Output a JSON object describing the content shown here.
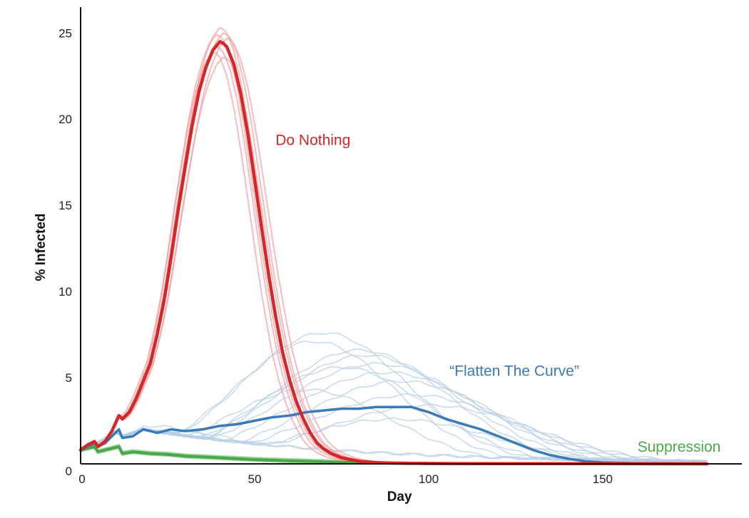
{
  "chart_data": {
    "type": "line",
    "xlabel": "Day",
    "ylabel": "% Infected",
    "xlim": [
      0,
      190
    ],
    "ylim": [
      0,
      26.5
    ],
    "xticks": [
      0,
      50,
      100,
      150
    ],
    "yticks": [
      0,
      5,
      10,
      15,
      20,
      25
    ],
    "grid": false,
    "series": [
      {
        "name": "Do Nothing",
        "color": "#d62728",
        "x": [
          0,
          2,
          4,
          5,
          7,
          9,
          11,
          12,
          14,
          16,
          18,
          20,
          22,
          24,
          26,
          28,
          30,
          32,
          34,
          36,
          38,
          40,
          41,
          42,
          44,
          46,
          48,
          50,
          52,
          54,
          56,
          58,
          60,
          62,
          64,
          66,
          68,
          70,
          72,
          75,
          80,
          85,
          90,
          100,
          120,
          150,
          180
        ],
        "y": [
          0.8,
          1.1,
          1.3,
          1.0,
          1.3,
          1.9,
          2.8,
          2.6,
          3.0,
          3.8,
          4.8,
          5.8,
          7.5,
          9.5,
          12.0,
          14.7,
          17.2,
          19.6,
          21.6,
          23.0,
          24.0,
          24.5,
          24.4,
          24.2,
          23.2,
          21.5,
          19.2,
          16.5,
          13.7,
          11.0,
          8.6,
          6.5,
          4.9,
          3.6,
          2.6,
          1.8,
          1.2,
          0.85,
          0.6,
          0.35,
          0.15,
          0.07,
          0.04,
          0.02,
          0.01,
          0.01,
          0.0
        ]
      },
      {
        "name": "“Flatten The Curve”",
        "color": "#3a7ab8",
        "x": [
          0,
          2,
          4,
          5,
          7,
          9,
          11,
          12,
          15,
          18,
          22,
          26,
          30,
          35,
          40,
          45,
          50,
          55,
          60,
          65,
          70,
          75,
          80,
          85,
          90,
          95,
          100,
          105,
          110,
          115,
          120,
          125,
          130,
          135,
          140,
          145,
          150,
          160,
          170,
          180
        ],
        "y": [
          0.8,
          1.0,
          1.2,
          1.0,
          1.2,
          1.6,
          2.0,
          1.5,
          1.6,
          2.0,
          1.8,
          2.0,
          1.9,
          2.0,
          2.2,
          2.3,
          2.5,
          2.7,
          2.8,
          3.0,
          3.1,
          3.2,
          3.2,
          3.3,
          3.3,
          3.3,
          3.0,
          2.6,
          2.3,
          2.0,
          1.6,
          1.2,
          0.8,
          0.5,
          0.3,
          0.15,
          0.08,
          0.03,
          0.01,
          0.0
        ]
      },
      {
        "name": "Suppression",
        "color": "#4aa84a",
        "x": [
          0,
          2,
          4,
          5,
          7,
          9,
          11,
          12,
          15,
          20,
          25,
          30,
          35,
          40,
          45,
          50,
          60,
          70,
          80,
          90,
          100,
          120,
          150,
          180
        ],
        "y": [
          0.8,
          0.9,
          1.0,
          0.7,
          0.8,
          0.9,
          1.0,
          0.6,
          0.7,
          0.6,
          0.55,
          0.45,
          0.4,
          0.35,
          0.3,
          0.25,
          0.18,
          0.12,
          0.08,
          0.05,
          0.03,
          0.01,
          0.0,
          0.0
        ]
      }
    ],
    "background_runs": {
      "Do Nothing": {
        "color": "#f2a0a3",
        "runs": [
          {
            "peak_day": 41,
            "peak": 25.3,
            "width_scale": 1.0
          },
          {
            "peak_day": 42,
            "peak": 25.0,
            "width_scale": 1.03
          },
          {
            "peak_day": 40,
            "peak": 24.2,
            "width_scale": 0.97
          },
          {
            "peak_day": 43,
            "peak": 24.7,
            "width_scale": 1.05
          },
          {
            "peak_day": 39,
            "peak": 23.9,
            "width_scale": 0.95
          },
          {
            "peak_day": 42,
            "peak": 23.6,
            "width_scale": 1.02
          },
          {
            "peak_day": 40,
            "peak": 24.9,
            "width_scale": 1.0
          }
        ]
      },
      "“Flatten The Curve”": {
        "color": "#b7cfe6",
        "runs": [
          {
            "peak_day": 70,
            "peak": 7.6,
            "width": 34
          },
          {
            "peak_day": 67,
            "peak": 7.1,
            "width": 33
          },
          {
            "peak_day": 80,
            "peak": 6.6,
            "width": 36
          },
          {
            "peak_day": 82,
            "peak": 6.3,
            "width": 38
          },
          {
            "peak_day": 85,
            "peak": 5.8,
            "width": 40
          },
          {
            "peak_day": 88,
            "peak": 5.3,
            "width": 40
          },
          {
            "peak_day": 75,
            "peak": 5.6,
            "width": 35
          },
          {
            "peak_day": 92,
            "peak": 4.8,
            "width": 40
          },
          {
            "peak_day": 65,
            "peak": 4.3,
            "width": 34
          },
          {
            "peak_day": 95,
            "peak": 4.0,
            "width": 42
          },
          {
            "peak_day": 100,
            "peak": 3.4,
            "width": 42
          },
          {
            "peak_day": 90,
            "peak": 2.6,
            "width": 40
          },
          {
            "peak_day": 20,
            "peak": 2.2,
            "width": 28
          },
          {
            "peak_day": 28,
            "peak": 1.9,
            "width": 30
          }
        ]
      },
      "Suppression": {
        "color": "#8fd08f",
        "runs": [
          {
            "offset": 0.1
          },
          {
            "offset": -0.08
          },
          {
            "offset": 0.05
          },
          {
            "offset": -0.04
          }
        ]
      }
    },
    "annotations": [
      {
        "text": "Do Nothing",
        "x": 56,
        "y": 18.5,
        "color": "#d62728"
      },
      {
        "text": "“Flatten The Curve”",
        "x": 106,
        "y": 5.1,
        "color": "#3a7ab8"
      },
      {
        "text": "Suppression",
        "x": 160,
        "y": 0.7,
        "color": "#4aa84a"
      }
    ]
  }
}
